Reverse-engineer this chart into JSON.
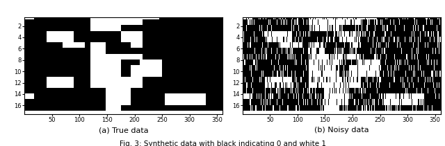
{
  "title": "Fig. 3: Synthetic data with black indicating 0 and white 1",
  "subtitle_a": "(a) True data",
  "subtitle_b": "(b) Noisy data",
  "n_rows": 17,
  "n_cols": 360,
  "figsize": [
    6.4,
    2.11
  ],
  "dpi": 100,
  "noise_prob": 0.15,
  "true_data_seed": 7,
  "noisy_data_seed": 42,
  "row_ticks": [
    2,
    4,
    6,
    8,
    10,
    12,
    14,
    16
  ],
  "col_ticks": [
    50,
    100,
    150,
    200,
    250,
    300,
    350
  ],
  "black": 0,
  "white": 1
}
